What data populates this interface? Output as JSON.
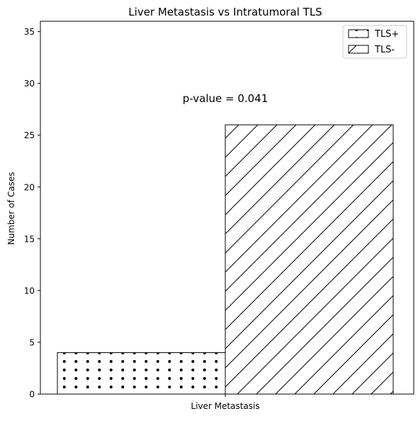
{
  "chart_data": {
    "type": "bar",
    "title": "Liver Metastasis vs Intratumoral TLS",
    "xlabel": "",
    "ylabel": "Number of Cases",
    "categories": [
      "Liver Metastasis"
    ],
    "series": [
      {
        "name": "TLS+",
        "values": [
          4
        ],
        "hatch": "dots",
        "color": "#ffffff",
        "edgecolor": "#000000"
      },
      {
        "name": "TLS-",
        "values": [
          26
        ],
        "hatch": "diagonal",
        "color": "#ffffff",
        "edgecolor": "#000000"
      }
    ],
    "ylim": [
      0,
      36
    ],
    "yticks": [
      0,
      5,
      10,
      15,
      20,
      25,
      30,
      35
    ],
    "annotation": {
      "text": "p-value = 0.041",
      "y": 28.3
    },
    "legend": {
      "position": "top-right"
    },
    "grid": false
  }
}
